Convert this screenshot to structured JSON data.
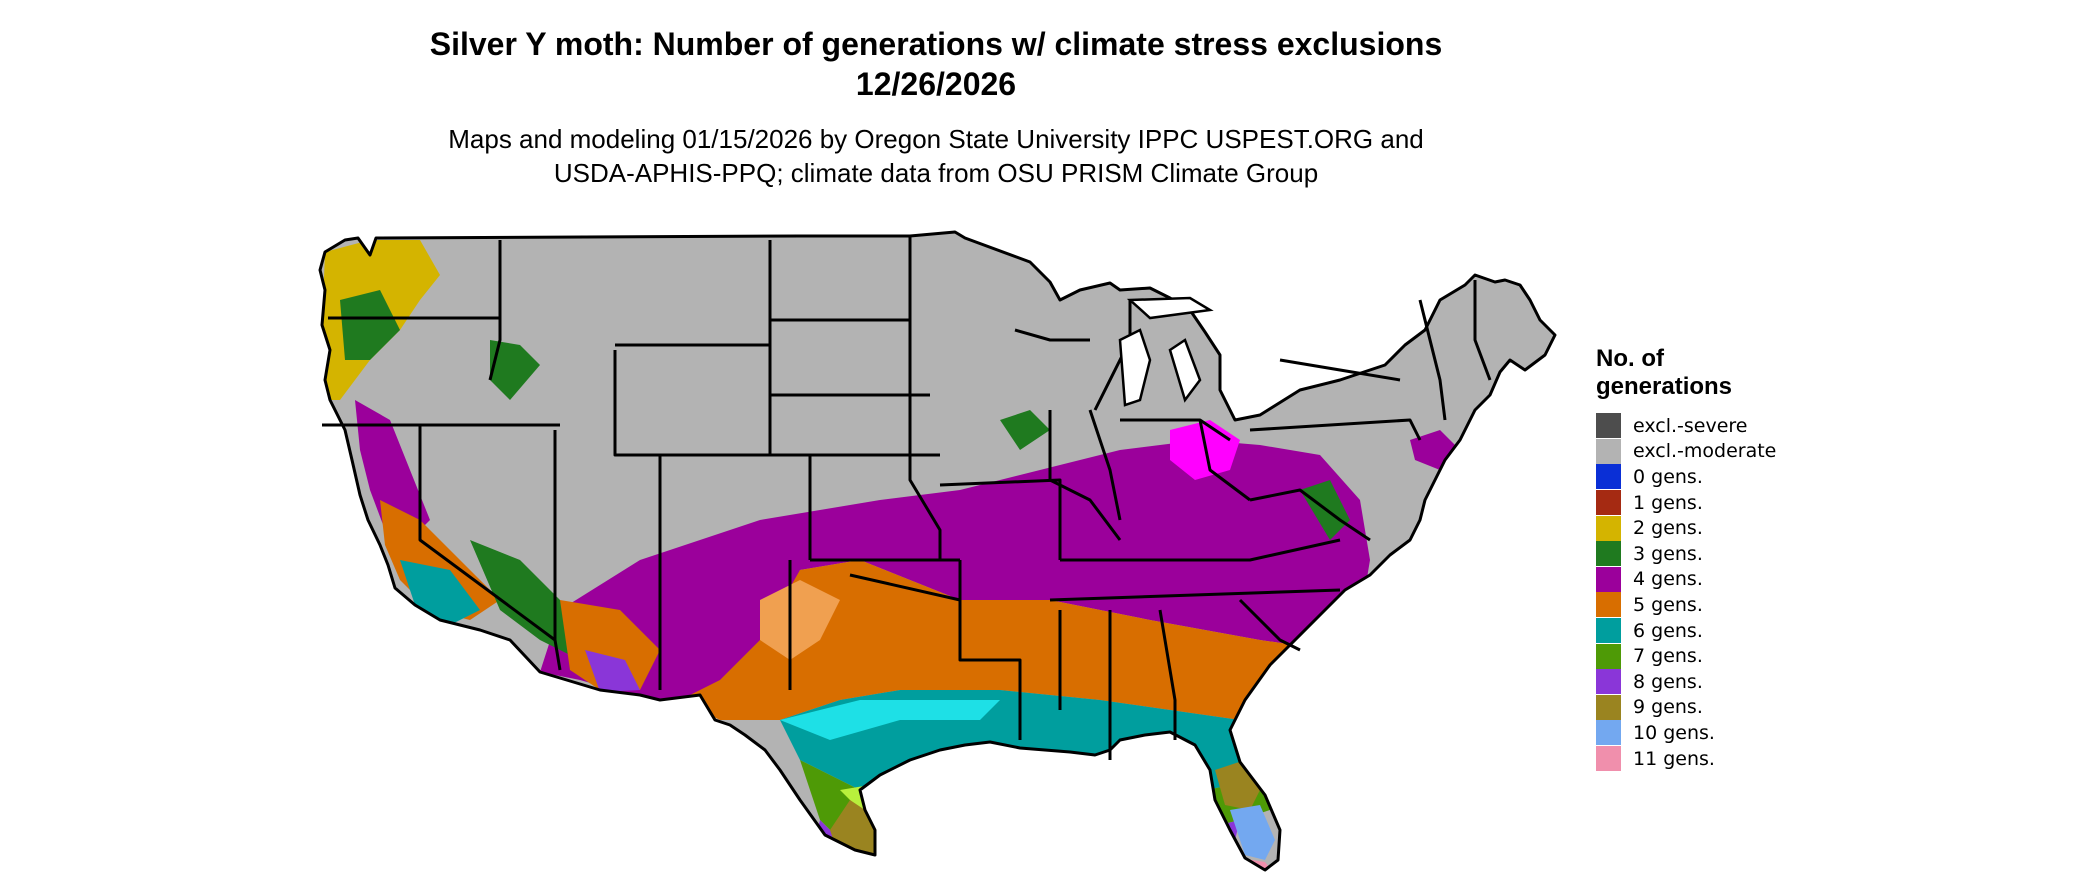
{
  "header": {
    "title_line1": "Silver Y moth: Number of generations w/ climate stress exclusions",
    "title_line2": "12/26/2026",
    "subtitle_line1": "Maps and modeling 01/15/2026 by Oregon State University IPPC USPEST.ORG and",
    "subtitle_line2": "USDA-APHIS-PPQ; climate data from OSU PRISM Climate Group"
  },
  "legend": {
    "title_line1": "No. of",
    "title_line2": "generations",
    "items": [
      {
        "label": "excl.-severe",
        "color": "#4d4d4d"
      },
      {
        "label": "excl.-moderate",
        "color": "#b3b3b3"
      },
      {
        "label": "0 gens.",
        "color": "#0a2fd6"
      },
      {
        "label": "1 gens.",
        "color": "#a52a12"
      },
      {
        "label": "2 gens.",
        "color": "#d4b400"
      },
      {
        "label": "3 gens.",
        "color": "#1f7a1f"
      },
      {
        "label": "4 gens.",
        "color": "#9b009b"
      },
      {
        "label": "5 gens.",
        "color": "#d86e00"
      },
      {
        "label": "6 gens.",
        "color": "#009e9e"
      },
      {
        "label": "7 gens.",
        "color": "#4e9a06"
      },
      {
        "label": "8 gens.",
        "color": "#8a36d8"
      },
      {
        "label": "9 gens.",
        "color": "#9a8420"
      },
      {
        "label": "10 gens.",
        "color": "#73a8f0"
      },
      {
        "label": "11 gens.",
        "color": "#f08fac"
      }
    ]
  },
  "map": {
    "region": "conterminous-us",
    "colors": {
      "background": "#b3b3b3",
      "cyan": "#1ee0e6",
      "lime": "#b8f03c",
      "light_orange": "#f0a050",
      "magenta": "#ff00ff",
      "outline": "#000000"
    }
  }
}
